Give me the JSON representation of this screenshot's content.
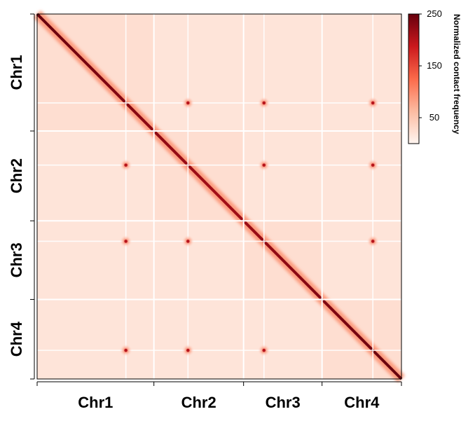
{
  "chart_data": {
    "type": "heatmap",
    "chromosomes": [
      {
        "name": "Chr1",
        "length": 1.25
      },
      {
        "name": "Chr2",
        "length": 0.96
      },
      {
        "name": "Chr3",
        "length": 0.84
      },
      {
        "name": "Chr4",
        "length": 0.85
      }
    ],
    "x_tick_labels": [
      "Chr1",
      "Chr2",
      "Chr3",
      "Chr4"
    ],
    "y_tick_labels": [
      "Chr1",
      "Chr2",
      "Chr3",
      "Chr4"
    ],
    "colorbar": {
      "title": "Normalized contact frequency",
      "min": 0,
      "max": 250,
      "ticks": [
        {
          "value": 250,
          "label": "250"
        },
        {
          "value": 150,
          "label": "150"
        },
        {
          "value": 50,
          "label": "50"
        }
      ],
      "colors": [
        "#fff5f0",
        "#fcbba1",
        "#fb6a4a",
        "#cb181d",
        "#67000d"
      ]
    },
    "centromeres": [
      0.76,
      0.38,
      0.26,
      0.64
    ],
    "diagonal_max": 250,
    "background_level": 18,
    "centromere_contact_level": 200
  }
}
